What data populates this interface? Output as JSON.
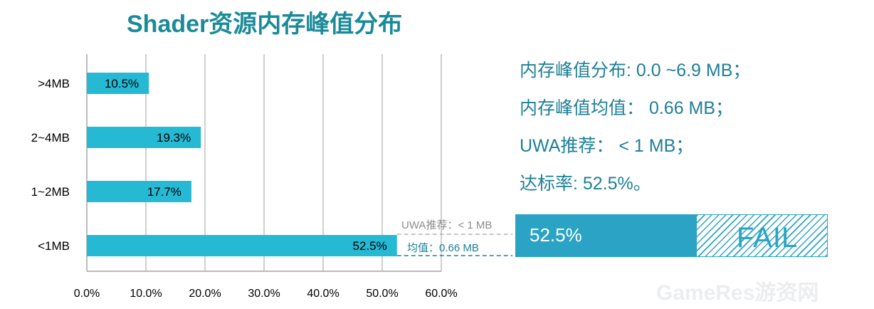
{
  "chart_data": {
    "type": "bar",
    "orientation": "horizontal",
    "title": "Shader资源内存峰值分布",
    "categories": [
      ">4MB",
      "2~4MB",
      "1~2MB",
      "<1MB"
    ],
    "values": [
      10.5,
      19.3,
      17.7,
      52.5
    ],
    "data_labels": [
      "10.5%",
      "19.3%",
      "17.7%",
      "52.5%"
    ],
    "xlim": [
      0,
      60
    ],
    "x_ticks": [
      "0.0%",
      "10.0%",
      "20.0%",
      "30.0%",
      "40.0%",
      "50.0%",
      "60.0%"
    ],
    "grid": true,
    "bar_color": "#25b9d4",
    "reference_lines": [
      {
        "label": "UWA推荐：< 1 MB",
        "style": "dashed",
        "color": "#b3b3b3"
      },
      {
        "label": "均值：0.66 MB",
        "style": "dashed",
        "color": "#1e7f97"
      }
    ]
  },
  "stats": [
    "内存峰值分布: 0.0 ~6.9 MB；",
    "内存峰值均值： 0.66 MB；",
    "UWA推荐： < 1 MB；",
    "达标率: 52.5%。"
  ],
  "pass_rate": {
    "value": 52.5,
    "label": "52.5%",
    "fail_label": "FAIL",
    "color": "#2aa3c4"
  },
  "watermark": "GameRes游资网"
}
